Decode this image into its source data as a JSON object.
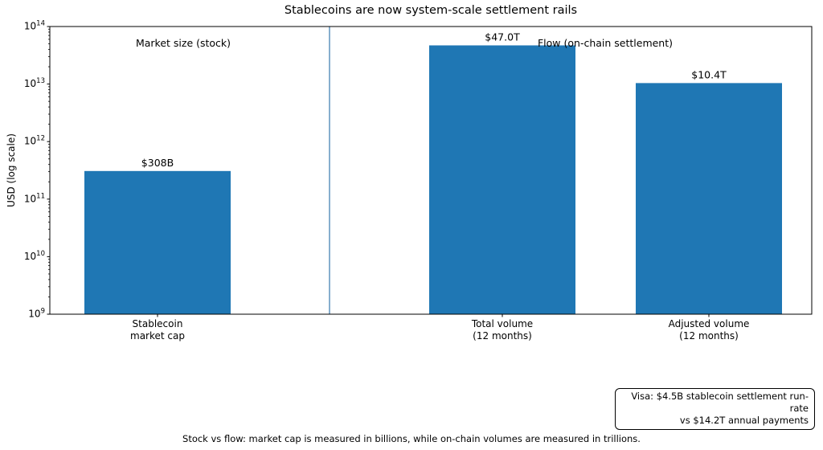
{
  "title": "Stablecoins are now system-scale settlement rails",
  "chart_data": {
    "type": "bar",
    "title": "Stablecoins are now system-scale settlement rails",
    "xlabel": "",
    "ylabel": "USD (log scale)",
    "yscale": "log",
    "ylim": [
      1000000000,
      100000000000000
    ],
    "ytick_exponents": [
      9,
      10,
      11,
      12,
      13,
      14
    ],
    "grid": false,
    "legend": null,
    "categories": [
      "Stablecoin\nmarket cap",
      "Total volume\n(12 months)",
      "Adjusted volume\n(12 months)"
    ],
    "values": [
      308000000000,
      47000000000000,
      10400000000000
    ],
    "value_labels": [
      "$308B",
      "$47.0T",
      "$10.4T"
    ],
    "bar_color": "#1f77b4",
    "separator_color": "#4682b4",
    "axis_color": "#000000",
    "annotations": [
      {
        "text": "Market size (stock)"
      },
      {
        "text": "Flow (on-chain settlement)"
      }
    ]
  },
  "annotation_box": {
    "lines": [
      "Visa: $4.5B stablecoin settlement run-rate",
      "vs $14.2T annual payments"
    ]
  },
  "caption": "Stock vs flow: market cap is measured in billions, while on-chain volumes are measured in trillions."
}
